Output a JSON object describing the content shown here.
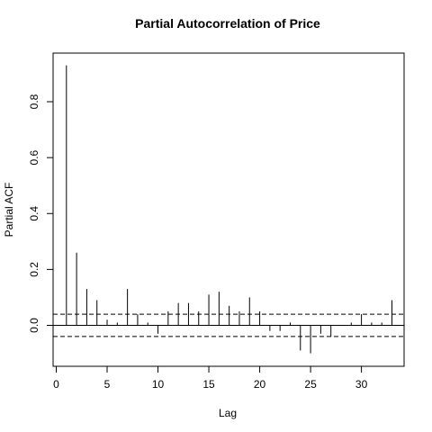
{
  "chart_data": {
    "type": "bar",
    "title": "Partial Autocorrelation of Price",
    "xlabel": "Lag",
    "ylabel": "Partial ACF",
    "xlim": [
      0,
      34
    ],
    "ylim": [
      -0.1,
      0.93
    ],
    "x_ticks": [
      0,
      5,
      10,
      15,
      20,
      25,
      30
    ],
    "y_ticks": [
      0.0,
      0.2,
      0.4,
      0.6,
      0.8
    ],
    "y_tick_labels": [
      "0.0",
      "0.2",
      "0.4",
      "0.6",
      "0.8"
    ],
    "confidence_bound": 0.04,
    "x": [
      1,
      2,
      3,
      4,
      5,
      6,
      7,
      8,
      9,
      10,
      11,
      12,
      13,
      14,
      15,
      16,
      17,
      18,
      19,
      20,
      21,
      22,
      23,
      24,
      25,
      26,
      27,
      28,
      29,
      30,
      31,
      32,
      33
    ],
    "values": [
      0.93,
      0.26,
      0.13,
      0.09,
      0.02,
      0.01,
      0.13,
      0.04,
      0.01,
      -0.03,
      0.05,
      0.08,
      0.08,
      0.05,
      0.11,
      0.12,
      0.07,
      0.05,
      0.1,
      0.05,
      -0.02,
      -0.02,
      0.01,
      -0.09,
      -0.1,
      -0.03,
      -0.04,
      0.0,
      0.01,
      0.04,
      0.01,
      0.01,
      0.09
    ],
    "grid": false,
    "legend": "none"
  }
}
